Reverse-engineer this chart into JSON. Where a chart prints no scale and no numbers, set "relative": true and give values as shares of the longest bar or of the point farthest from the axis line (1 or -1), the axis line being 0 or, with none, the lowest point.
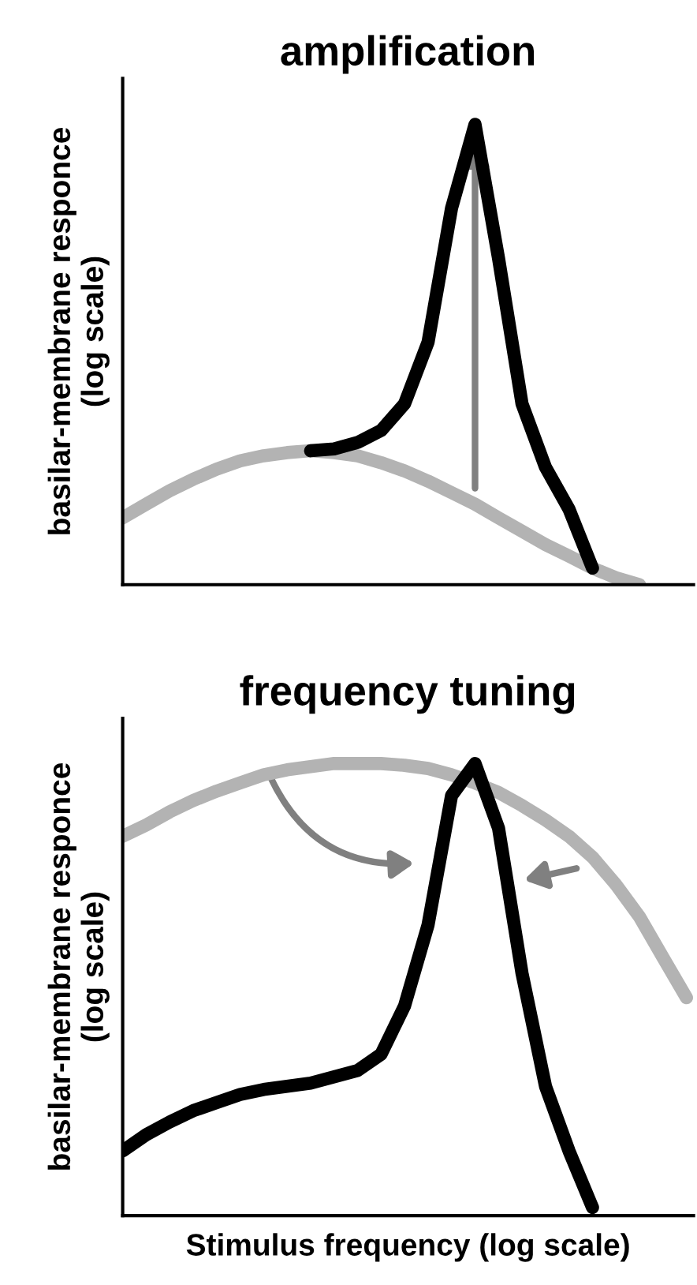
{
  "chart_data": [
    {
      "type": "line",
      "title": "amplification",
      "ylabel": "basilar-membrane responce\n(log scale)",
      "relative": true,
      "categories": [
        null,
        null,
        null,
        null,
        null,
        null,
        null,
        null,
        null,
        null,
        null,
        null,
        null,
        null,
        null,
        null,
        null,
        null,
        null,
        null,
        null,
        null,
        null,
        null,
        null
      ],
      "series": [
        {
          "color": "#b3b3b3",
          "values": [
            0.145,
            0.175,
            0.204,
            0.229,
            0.251,
            0.269,
            0.28,
            0.287,
            0.291,
            0.287,
            0.28,
            0.265,
            0.247,
            0.225,
            0.2,
            0.175,
            0.145,
            0.116,
            0.087,
            0.062,
            0.036,
            0.015,
            0,
            null,
            null
          ]
        },
        {
          "color": "#000000",
          "values": [
            null,
            null,
            null,
            null,
            null,
            null,
            null,
            null,
            0.291,
            0.295,
            0.309,
            0.335,
            0.393,
            0.527,
            0.818,
            1,
            0.709,
            0.393,
            0.255,
            0.164,
            0.036,
            null,
            null,
            null,
            null
          ]
        }
      ],
      "legend": false
    },
    {
      "type": "line",
      "title": "frequency tuning",
      "ylabel": "basilar-membrane responce\n(log scale)",
      "xlabel": "Stimulus frequency (log scale)",
      "relative": true,
      "categories": [
        null,
        null,
        null,
        null,
        null,
        null,
        null,
        null,
        null,
        null,
        null,
        null,
        null,
        null,
        null,
        null,
        null,
        null,
        null,
        null,
        null,
        null,
        null,
        null,
        null
      ],
      "series": [
        {
          "color": "#b3b3b3",
          "values": [
            0.839,
            0.864,
            0.893,
            0.918,
            0.939,
            0.957,
            0.975,
            0.986,
            0.993,
            1,
            1,
            1,
            0.996,
            0.989,
            0.975,
            0.957,
            0.936,
            0.907,
            0.875,
            0.839,
            0.793,
            0.732,
            0.661,
            0.571,
            0.482
          ]
        },
        {
          "color": "#000000",
          "values": [
            0.143,
            0.179,
            0.207,
            0.232,
            0.25,
            0.268,
            0.279,
            0.286,
            0.293,
            0.307,
            0.321,
            0.357,
            0.464,
            0.643,
            0.929,
            1,
            0.857,
            0.536,
            0.286,
            0.143,
            0.018,
            null,
            null,
            null,
            null
          ]
        }
      ],
      "legend": false
    }
  ]
}
